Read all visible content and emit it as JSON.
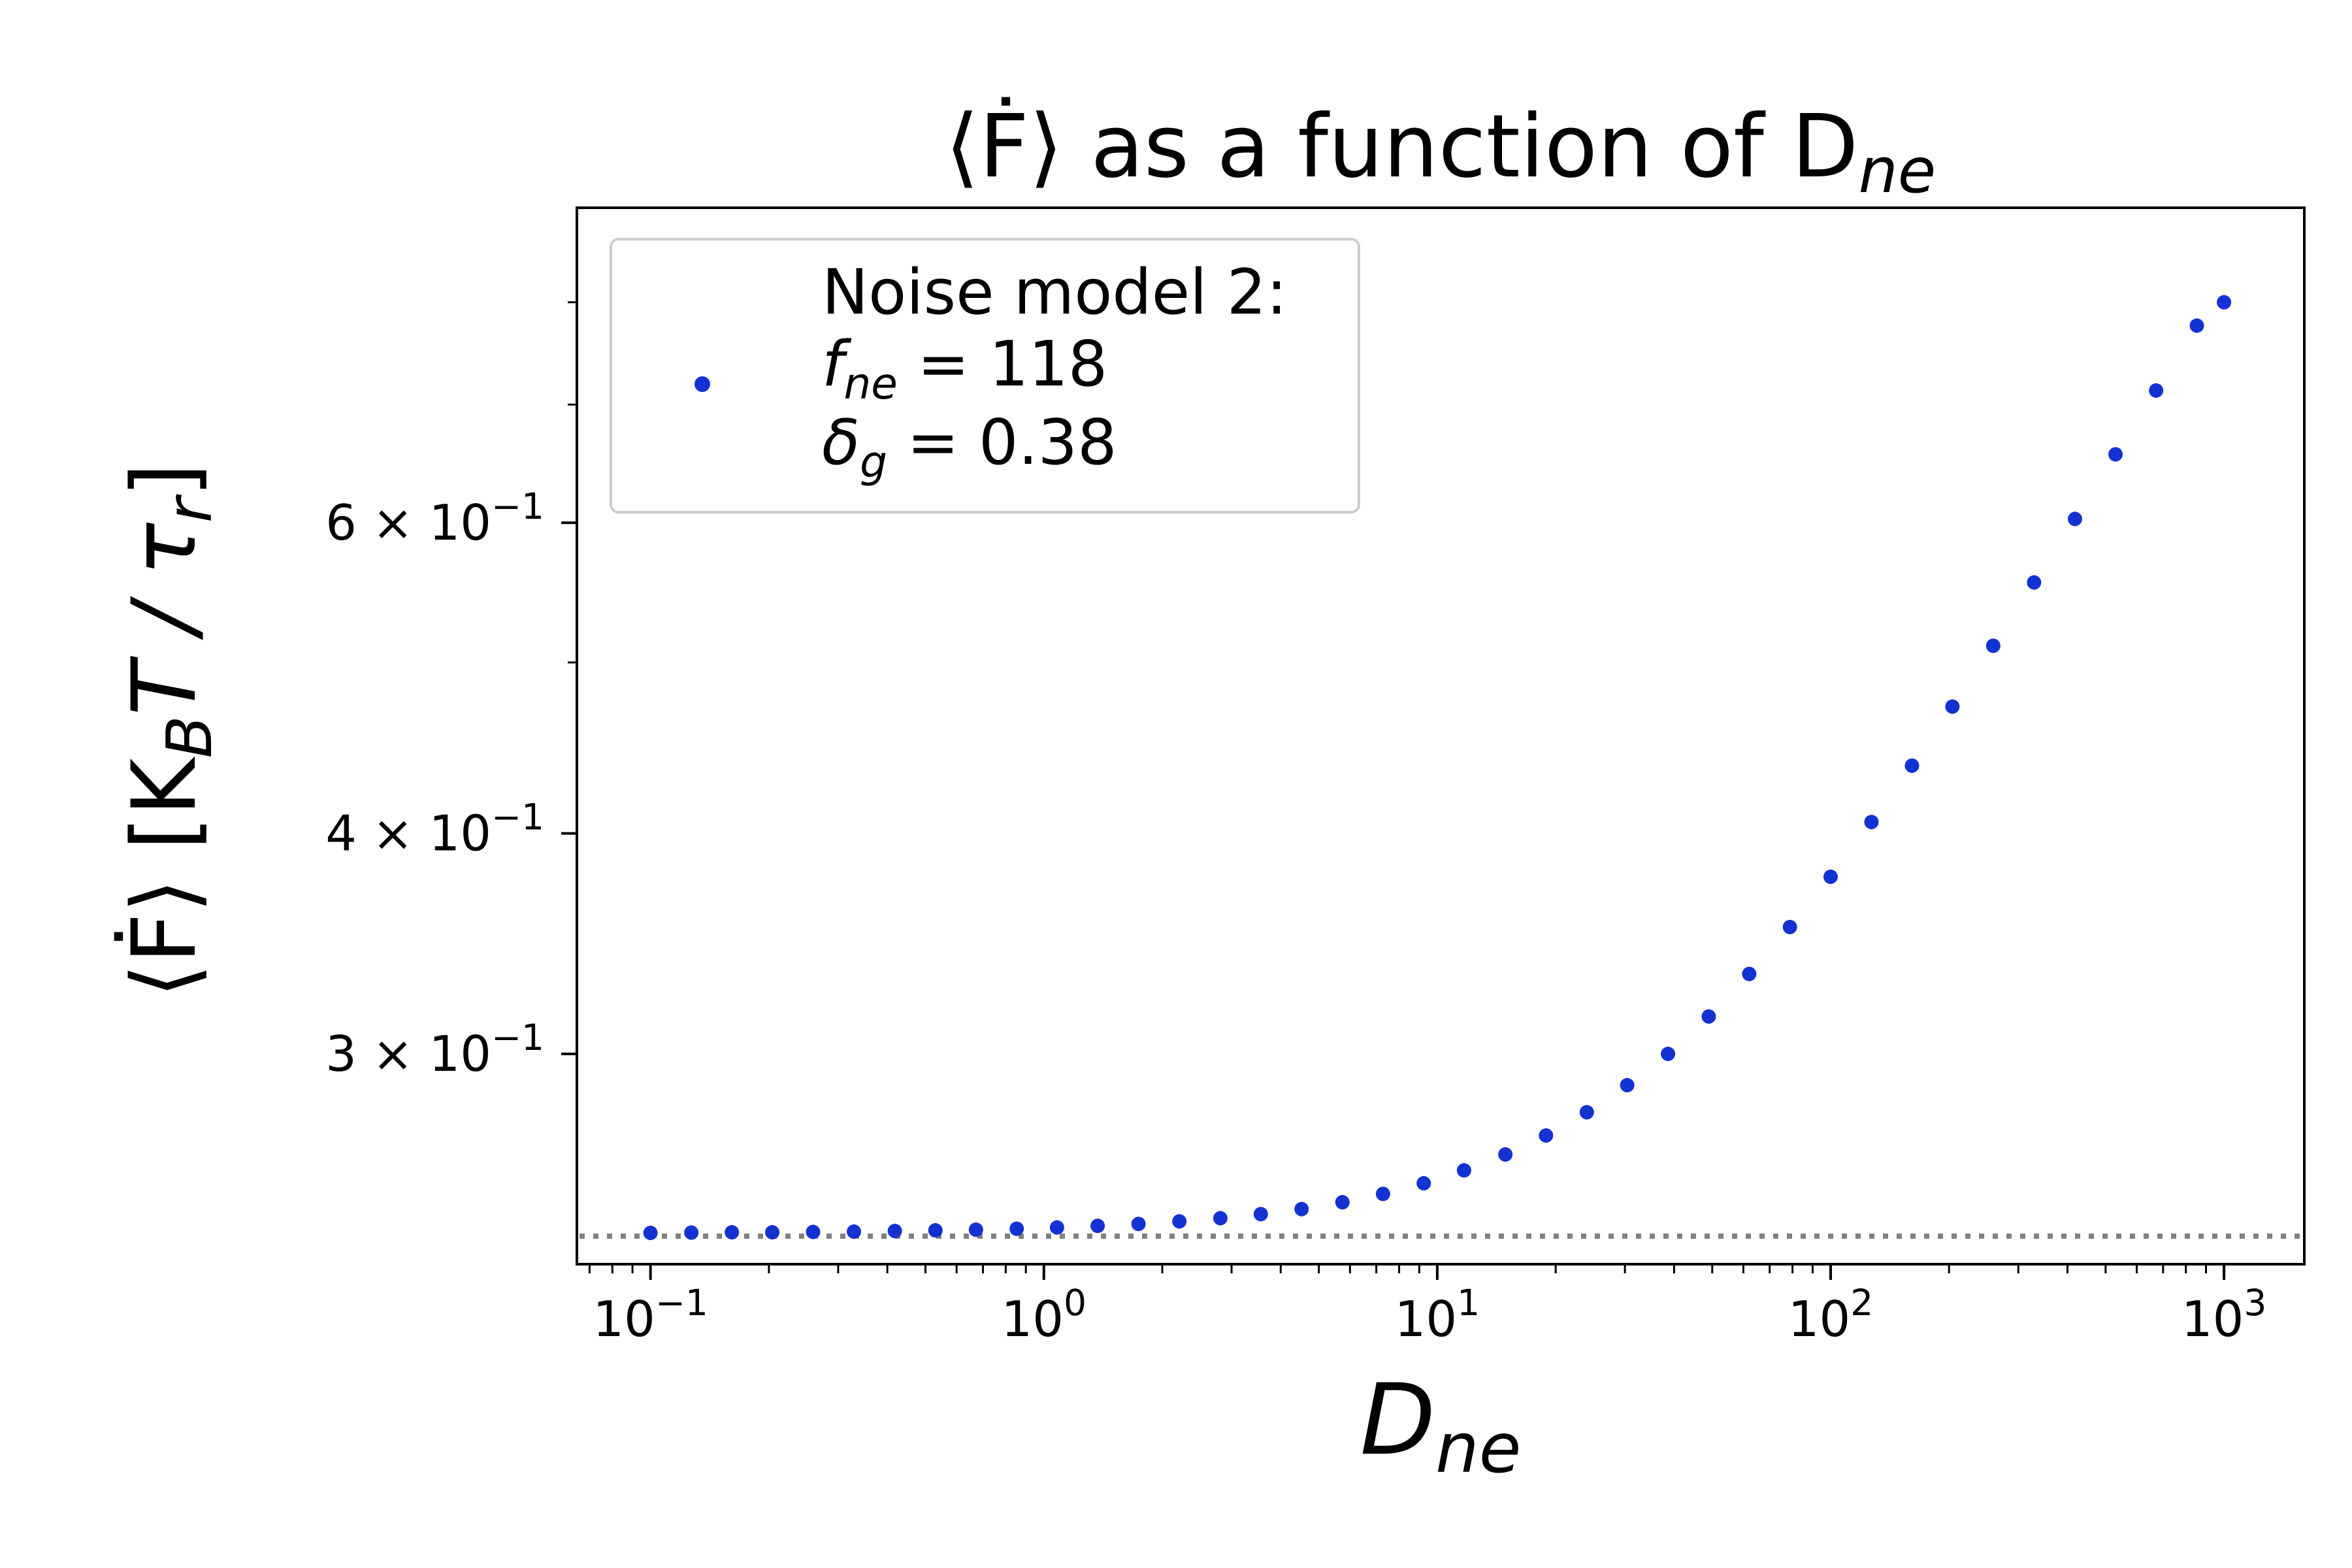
{
  "chart_data": {
    "type": "scatter",
    "title": "⟨Ḟ⟩ as a function of D",
    "title_sub": "ne",
    "xlabel": "D",
    "xlabel_sub": "ne",
    "ylabel": "⟨Ḟ⟩   [K",
    "ylabel_sub1": "B",
    "ylabel_mid": "T / τ",
    "ylabel_sub2": "r",
    "ylabel_end": "]",
    "x_scale": "log",
    "y_scale": "log",
    "xlim": [
      0.065,
      1600
    ],
    "ylim": [
      0.228,
      0.905
    ],
    "x_ticks": [
      {
        "value": 0.1,
        "base": "10",
        "exp": "−1"
      },
      {
        "value": 1,
        "base": "10",
        "exp": "0"
      },
      {
        "value": 10,
        "base": "10",
        "exp": "1"
      },
      {
        "value": 100,
        "base": "10",
        "exp": "2"
      },
      {
        "value": 1000,
        "base": "10",
        "exp": "3"
      }
    ],
    "y_ticks": [
      {
        "value": 0.3,
        "mant": "3 × 10",
        "exp": "−1"
      },
      {
        "value": 0.4,
        "mant": "4 × 10",
        "exp": "−1"
      },
      {
        "value": 0.6,
        "mant": "6 × 10",
        "exp": "−1"
      }
    ],
    "y_minor_ticks": [
      0.5,
      0.7,
      0.8
    ],
    "grid": false,
    "reference_line": {
      "y": 0.2365,
      "style": "dotted",
      "color": "#808080"
    },
    "legend": {
      "position": "top-left",
      "line1": "Noise model 2:",
      "line2_symbol": "f",
      "line2_sub": "ne",
      "line2_value": " = 118",
      "line3_symbol": "δ",
      "line3_sub": "g",
      "line3_value": " = 0.38"
    },
    "marker_color": "#1432d2",
    "errorbar_color": "#e03030",
    "series": [
      {
        "x": [
          0.1,
          0.127,
          0.161,
          0.204,
          0.259,
          0.329,
          0.418,
          0.53,
          0.672,
          0.853,
          1.08,
          1.37,
          1.74,
          2.21,
          2.81,
          3.56,
          4.52,
          5.74,
          7.28,
          9.24,
          11.7,
          14.9,
          18.9,
          24.0,
          30.4,
          38.6,
          49.0,
          62.1,
          78.8,
          100,
          127,
          161,
          204,
          259,
          329,
          418,
          530,
          672,
          853,
          1000
        ],
        "y": [
          0.2375,
          0.2376,
          0.2377,
          0.2377,
          0.2378,
          0.2379,
          0.2381,
          0.2383,
          0.2385,
          0.2388,
          0.2392,
          0.2397,
          0.2403,
          0.2411,
          0.2421,
          0.2434,
          0.245,
          0.2472,
          0.2499,
          0.2534,
          0.2577,
          0.2631,
          0.2697,
          0.278,
          0.288,
          0.3,
          0.315,
          0.333,
          0.354,
          0.378,
          0.406,
          0.437,
          0.472,
          0.511,
          0.555,
          0.603,
          0.656,
          0.713,
          0.776,
          0.8
        ]
      }
    ]
  }
}
